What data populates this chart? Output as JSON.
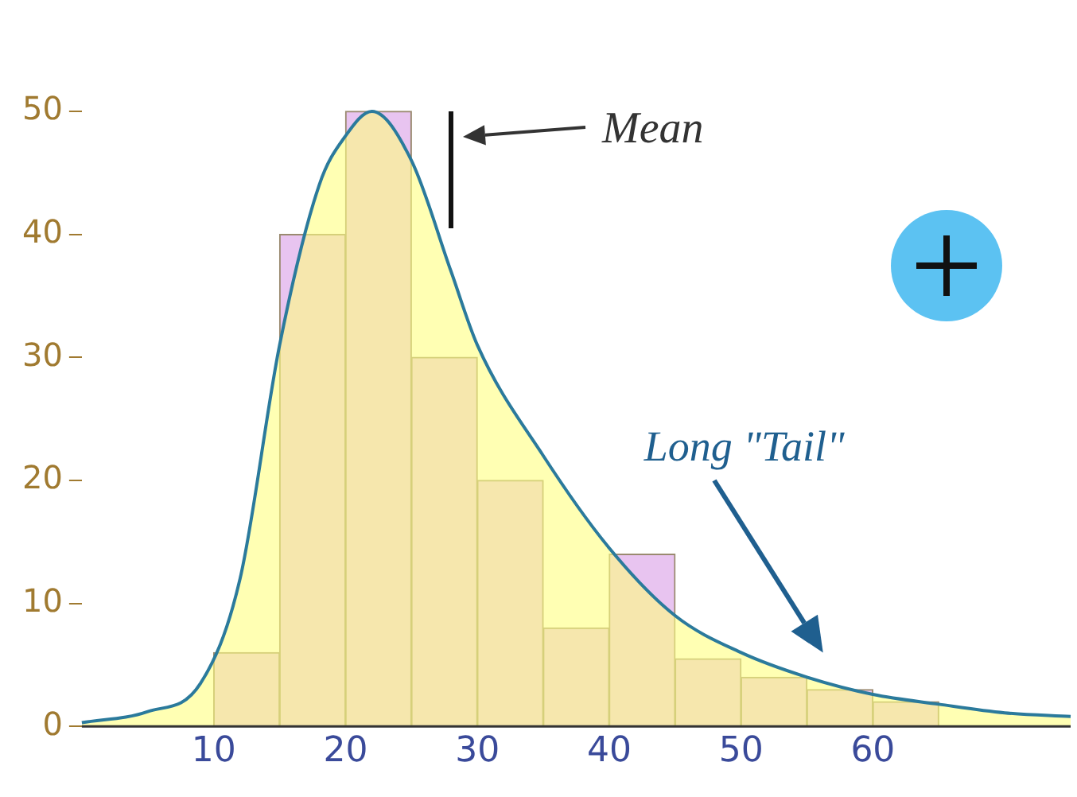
{
  "chart_data": {
    "type": "histogram",
    "bins": [
      10,
      15,
      20,
      25,
      30,
      35,
      40,
      45,
      50,
      55,
      60,
      65
    ],
    "values": [
      6,
      40,
      50,
      30,
      20,
      8,
      14,
      5.5,
      4,
      3,
      2
    ],
    "color": "#e8c4f0",
    "series": [
      {
        "type": "area",
        "color": "#ffff80",
        "x": [
          0,
          5,
          9,
          12,
          15,
          18,
          20,
          22,
          25,
          28,
          30,
          35,
          40,
          45,
          50,
          55,
          60,
          65,
          70,
          75
        ],
        "values": [
          0.3,
          1.2,
          3.5,
          12,
          31,
          44,
          48,
          50,
          46,
          37,
          31,
          22,
          14.5,
          9,
          6,
          4,
          2.6,
          1.8,
          1.1,
          0.8
        ]
      },
      {
        "type": "line",
        "color": "#2b7a9c",
        "x": [
          0,
          5,
          9,
          12,
          15,
          18,
          20,
          22,
          25,
          28,
          30,
          35,
          40,
          45,
          50,
          55,
          60,
          65,
          70,
          75
        ],
        "values": [
          0.3,
          1.2,
          3.5,
          12,
          31,
          44,
          48,
          50,
          46,
          37,
          31,
          22,
          14.5,
          9,
          6,
          4,
          2.6,
          1.8,
          1.1,
          0.8
        ]
      }
    ],
    "xlim": [
      0,
      75
    ],
    "xticks": [
      10,
      20,
      30,
      40,
      50,
      60
    ],
    "ylim": [
      0,
      50
    ],
    "yticks": [
      0,
      10,
      20,
      30,
      40,
      50
    ],
    "grid": false,
    "legend": false,
    "ref_lines": [
      {
        "axis": "x",
        "value": 28,
        "label": "Mean"
      }
    ],
    "annotations": [
      "Long \"Tail\""
    ]
  }
}
